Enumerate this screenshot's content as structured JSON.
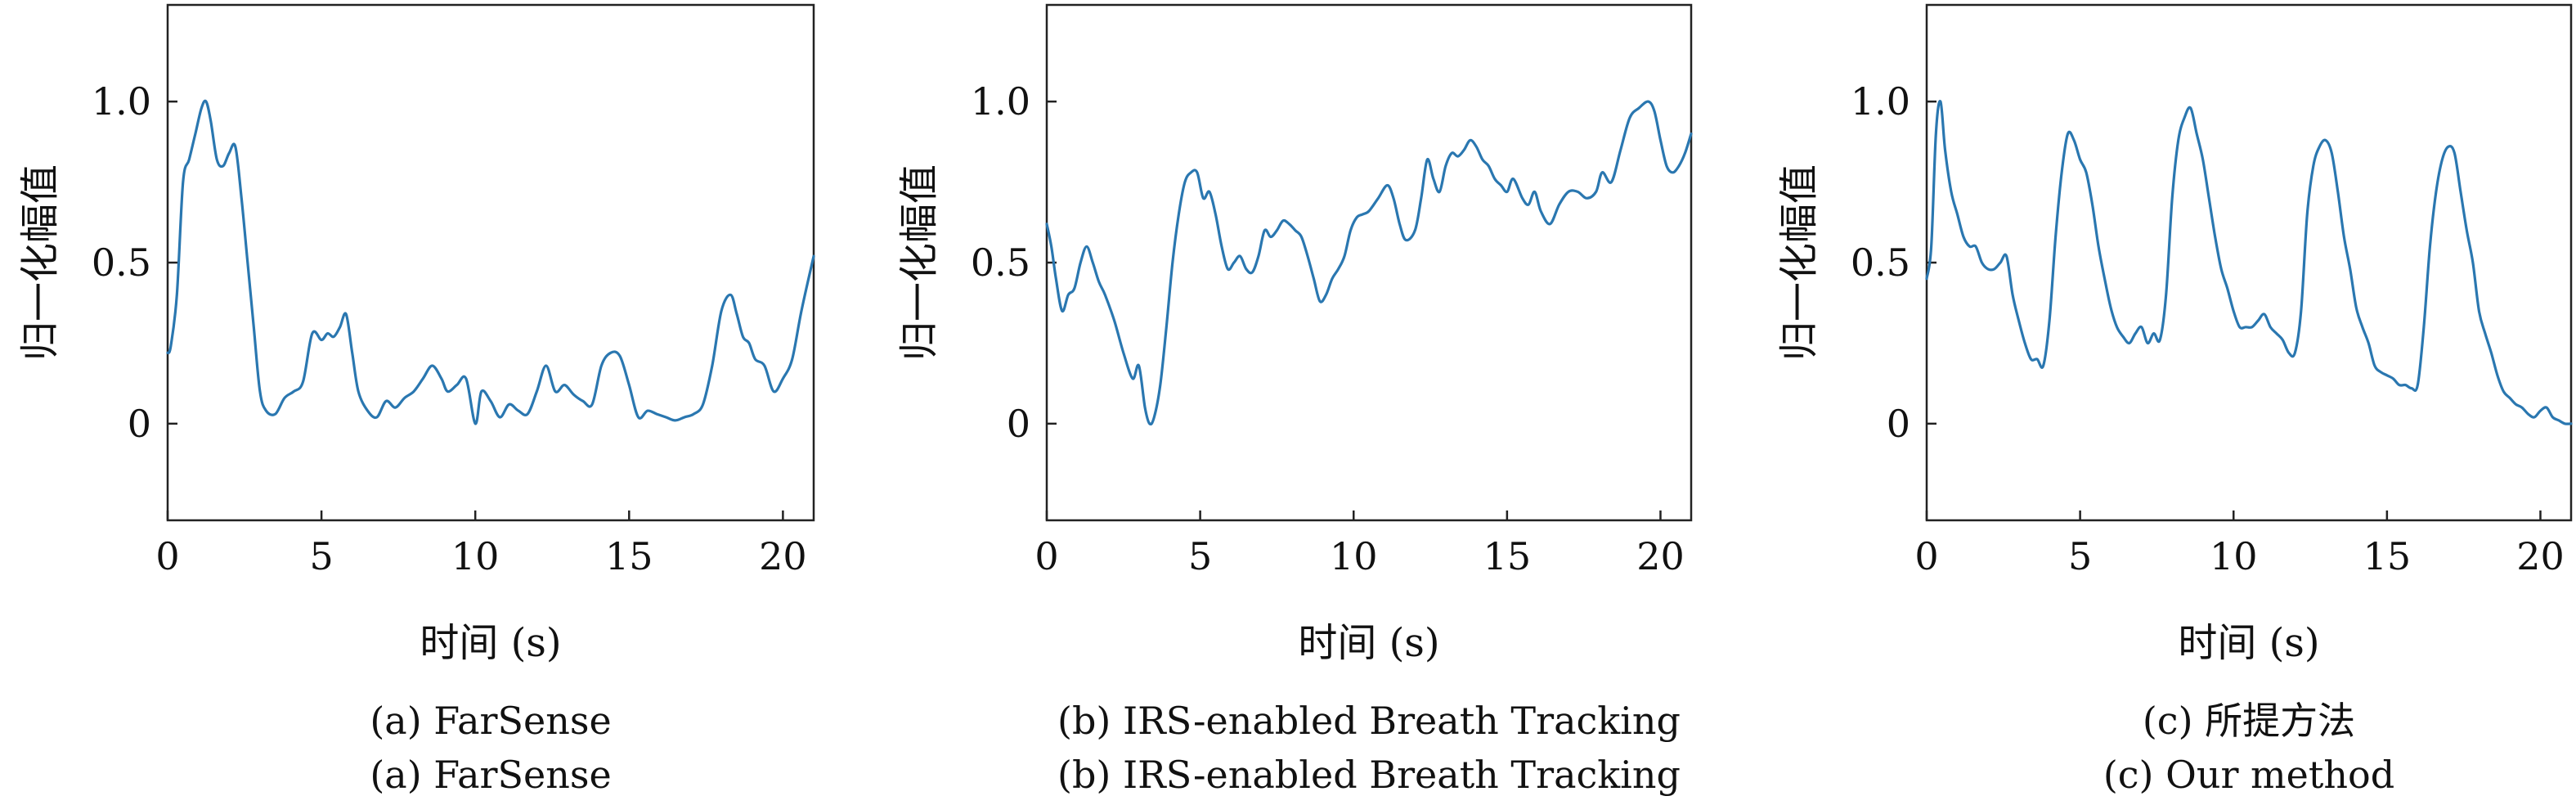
{
  "chart_data": [
    {
      "type": "line",
      "xlabel": "时间 (s)",
      "ylabel": "归一化幅值",
      "xlim": [
        0,
        21
      ],
      "ylim": [
        -0.3,
        1.3
      ],
      "xticks": [
        0,
        5,
        10,
        15,
        20
      ],
      "yticks": [
        0,
        0.5,
        1.0
      ],
      "ytick_labels": [
        "0",
        "0.5",
        "1.0"
      ],
      "grid": false,
      "captions": [
        "(a) FarSense",
        "(a) FarSense"
      ],
      "series": [
        {
          "color": "#2a77b0",
          "x": [
            0,
            0.1,
            0.3,
            0.5,
            0.7,
            0.9,
            1.1,
            1.25,
            1.4,
            1.6,
            1.8,
            2.0,
            2.2,
            2.4,
            2.6,
            2.8,
            3.0,
            3.2,
            3.5,
            3.8,
            4.1,
            4.4,
            4.7,
            5.0,
            5.2,
            5.4,
            5.6,
            5.8,
            6.0,
            6.2,
            6.5,
            6.8,
            7.1,
            7.4,
            7.7,
            8.0,
            8.3,
            8.6,
            8.9,
            9.1,
            9.4,
            9.7,
            10.0,
            10.2,
            10.5,
            10.8,
            11.1,
            11.4,
            11.7,
            12.0,
            12.3,
            12.6,
            12.9,
            13.2,
            13.5,
            13.8,
            14.1,
            14.4,
            14.7,
            15.0,
            15.3,
            15.6,
            15.9,
            16.2,
            16.5,
            16.8,
            17.1,
            17.4,
            17.7,
            18.0,
            18.3,
            18.5,
            18.7,
            18.9,
            19.1,
            19.4,
            19.7,
            20.0,
            20.3,
            20.6,
            21.0
          ],
          "y": [
            0.22,
            0.24,
            0.4,
            0.75,
            0.82,
            0.9,
            0.98,
            1.0,
            0.94,
            0.82,
            0.8,
            0.84,
            0.86,
            0.7,
            0.5,
            0.3,
            0.1,
            0.04,
            0.03,
            0.08,
            0.1,
            0.13,
            0.28,
            0.26,
            0.28,
            0.27,
            0.3,
            0.34,
            0.22,
            0.1,
            0.04,
            0.02,
            0.07,
            0.05,
            0.08,
            0.1,
            0.14,
            0.18,
            0.14,
            0.1,
            0.12,
            0.14,
            0.0,
            0.1,
            0.07,
            0.02,
            0.06,
            0.04,
            0.03,
            0.1,
            0.18,
            0.1,
            0.12,
            0.09,
            0.07,
            0.06,
            0.18,
            0.22,
            0.21,
            0.12,
            0.02,
            0.04,
            0.03,
            0.02,
            0.01,
            0.02,
            0.03,
            0.06,
            0.18,
            0.35,
            0.4,
            0.34,
            0.27,
            0.25,
            0.2,
            0.18,
            0.1,
            0.14,
            0.2,
            0.35,
            0.52
          ]
        }
      ]
    },
    {
      "type": "line",
      "xlabel": "时间 (s)",
      "ylabel": "归一化幅值",
      "xlim": [
        0,
        21
      ],
      "ylim": [
        -0.3,
        1.3
      ],
      "xticks": [
        0,
        5,
        10,
        15,
        20
      ],
      "yticks": [
        0,
        0.5,
        1.0
      ],
      "ytick_labels": [
        "0",
        "0.5",
        "1.0"
      ],
      "grid": false,
      "captions": [
        "(b) IRS-enabled Breath Tracking",
        "(b) IRS-enabled Breath Tracking"
      ],
      "series": [
        {
          "color": "#2a77b0",
          "x": [
            0,
            0.15,
            0.3,
            0.5,
            0.7,
            0.9,
            1.1,
            1.3,
            1.5,
            1.7,
            1.9,
            2.2,
            2.5,
            2.8,
            3.0,
            3.2,
            3.35,
            3.5,
            3.7,
            3.9,
            4.1,
            4.3,
            4.5,
            4.7,
            4.9,
            5.1,
            5.3,
            5.5,
            5.7,
            5.9,
            6.1,
            6.3,
            6.5,
            6.7,
            6.9,
            7.1,
            7.3,
            7.5,
            7.7,
            7.9,
            8.1,
            8.3,
            8.5,
            8.7,
            8.9,
            9.1,
            9.3,
            9.5,
            9.7,
            9.9,
            10.1,
            10.3,
            10.5,
            10.8,
            11.1,
            11.3,
            11.5,
            11.7,
            12.0,
            12.2,
            12.4,
            12.6,
            12.8,
            13.0,
            13.2,
            13.4,
            13.6,
            13.8,
            14.0,
            14.2,
            14.4,
            14.6,
            14.8,
            15.0,
            15.2,
            15.5,
            15.7,
            15.9,
            16.1,
            16.4,
            16.7,
            17.0,
            17.3,
            17.6,
            17.9,
            18.1,
            18.4,
            18.7,
            19.0,
            19.3,
            19.6,
            19.8,
            20.0,
            20.2,
            20.4,
            20.6,
            20.8,
            21.0
          ],
          "y": [
            0.62,
            0.55,
            0.45,
            0.35,
            0.4,
            0.42,
            0.5,
            0.55,
            0.5,
            0.44,
            0.4,
            0.32,
            0.22,
            0.14,
            0.18,
            0.05,
            0.0,
            0.02,
            0.12,
            0.3,
            0.5,
            0.65,
            0.75,
            0.78,
            0.78,
            0.7,
            0.72,
            0.65,
            0.55,
            0.48,
            0.5,
            0.52,
            0.48,
            0.47,
            0.52,
            0.6,
            0.58,
            0.6,
            0.63,
            0.62,
            0.6,
            0.58,
            0.52,
            0.45,
            0.38,
            0.4,
            0.45,
            0.48,
            0.52,
            0.6,
            0.64,
            0.65,
            0.66,
            0.7,
            0.74,
            0.7,
            0.62,
            0.57,
            0.6,
            0.7,
            0.82,
            0.76,
            0.72,
            0.8,
            0.84,
            0.83,
            0.85,
            0.88,
            0.86,
            0.82,
            0.8,
            0.76,
            0.74,
            0.72,
            0.76,
            0.7,
            0.68,
            0.72,
            0.66,
            0.62,
            0.68,
            0.72,
            0.72,
            0.7,
            0.72,
            0.78,
            0.75,
            0.85,
            0.95,
            0.98,
            1.0,
            0.97,
            0.88,
            0.8,
            0.78,
            0.8,
            0.84,
            0.9
          ]
        }
      ]
    },
    {
      "type": "line",
      "xlabel": "时间 (s)",
      "ylabel": "归一化幅值",
      "xlim": [
        0,
        21
      ],
      "ylim": [
        -0.3,
        1.3
      ],
      "xticks": [
        0,
        5,
        10,
        15,
        20
      ],
      "yticks": [
        0,
        0.5,
        1.0
      ],
      "ytick_labels": [
        "0",
        "0.5",
        "1.0"
      ],
      "grid": false,
      "captions": [
        "(c) 所提方法",
        "(c) Our method"
      ],
      "series": [
        {
          "color": "#2a77b0",
          "x": [
            0,
            0.15,
            0.3,
            0.45,
            0.6,
            0.8,
            1.0,
            1.2,
            1.4,
            1.6,
            1.8,
            2.0,
            2.2,
            2.4,
            2.6,
            2.8,
            3.0,
            3.2,
            3.4,
            3.6,
            3.8,
            4.0,
            4.2,
            4.4,
            4.6,
            4.8,
            5.0,
            5.2,
            5.4,
            5.6,
            5.8,
            6.0,
            6.2,
            6.4,
            6.6,
            6.8,
            7.0,
            7.2,
            7.4,
            7.6,
            7.8,
            8.0,
            8.2,
            8.4,
            8.6,
            8.8,
            9.0,
            9.2,
            9.4,
            9.6,
            9.8,
            10.0,
            10.2,
            10.4,
            10.6,
            10.8,
            11.0,
            11.2,
            11.4,
            11.6,
            11.8,
            12.0,
            12.2,
            12.4,
            12.6,
            12.8,
            13.0,
            13.2,
            13.4,
            13.6,
            13.8,
            14.0,
            14.2,
            14.4,
            14.6,
            14.8,
            15.0,
            15.2,
            15.4,
            15.6,
            15.8,
            16.0,
            16.2,
            16.4,
            16.6,
            16.8,
            17.0,
            17.2,
            17.4,
            17.6,
            17.8,
            18.0,
            18.2,
            18.4,
            18.6,
            18.8,
            19.0,
            19.2,
            19.4,
            19.6,
            19.8,
            20.0,
            20.2,
            20.4,
            20.6,
            20.8,
            21.0
          ],
          "y": [
            0.45,
            0.55,
            0.9,
            1.0,
            0.85,
            0.72,
            0.65,
            0.58,
            0.55,
            0.55,
            0.5,
            0.48,
            0.48,
            0.5,
            0.52,
            0.4,
            0.32,
            0.25,
            0.2,
            0.2,
            0.18,
            0.32,
            0.58,
            0.78,
            0.9,
            0.88,
            0.82,
            0.78,
            0.68,
            0.55,
            0.45,
            0.36,
            0.3,
            0.27,
            0.25,
            0.28,
            0.3,
            0.25,
            0.28,
            0.26,
            0.4,
            0.7,
            0.88,
            0.95,
            0.98,
            0.9,
            0.82,
            0.7,
            0.58,
            0.48,
            0.42,
            0.35,
            0.3,
            0.3,
            0.3,
            0.32,
            0.34,
            0.3,
            0.28,
            0.26,
            0.22,
            0.22,
            0.35,
            0.65,
            0.8,
            0.86,
            0.88,
            0.84,
            0.72,
            0.58,
            0.48,
            0.36,
            0.3,
            0.25,
            0.18,
            0.16,
            0.15,
            0.14,
            0.12,
            0.12,
            0.11,
            0.12,
            0.3,
            0.55,
            0.72,
            0.82,
            0.86,
            0.84,
            0.72,
            0.6,
            0.5,
            0.35,
            0.28,
            0.22,
            0.15,
            0.1,
            0.08,
            0.06,
            0.05,
            0.03,
            0.02,
            0.04,
            0.05,
            0.02,
            0.01,
            0.0,
            0.0
          ]
        }
      ]
    }
  ]
}
